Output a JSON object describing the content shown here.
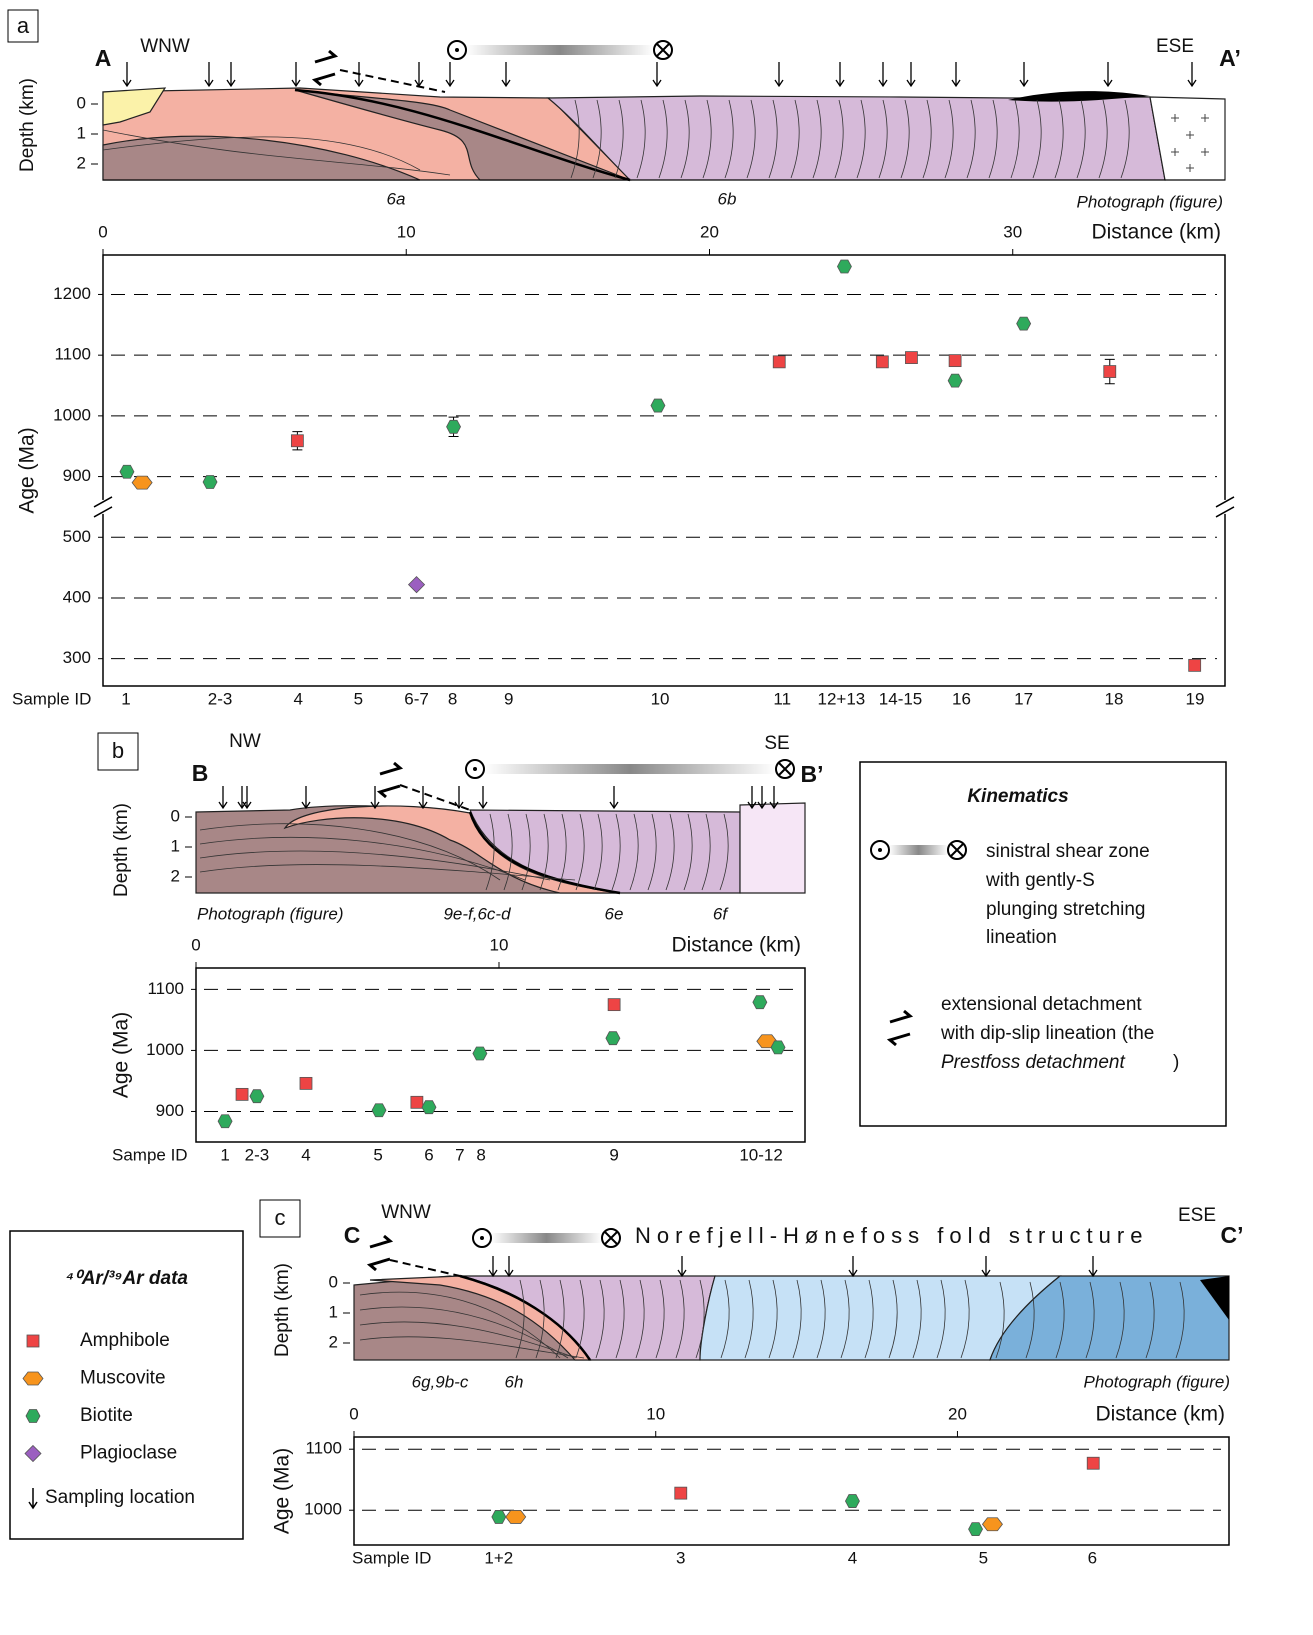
{
  "figure": {
    "panels": [
      {
        "label": "a",
        "section": {
          "start": "A",
          "end": "A’",
          "left_direction": "WNW",
          "right_direction": "ESE",
          "depth_label": "Depth (km)",
          "depth_ticks": [
            0,
            1,
            2
          ],
          "refs": [
            "6a",
            "6b"
          ],
          "photo_note": "Photograph (figure)"
        }
      },
      {
        "label": "b",
        "section": {
          "start": "B",
          "end": "B’",
          "left_direction": "NW",
          "right_direction": "SE",
          "depth_label": "Depth (km)",
          "depth_ticks": [
            0,
            1,
            2
          ],
          "refs": [
            "9e-f,6c-d",
            "6e",
            "6f"
          ],
          "photo_note": "Photograph (figure)"
        }
      },
      {
        "label": "c",
        "section": {
          "start": "C",
          "end": "C’",
          "left_direction": "WNW",
          "right_direction": "ESE",
          "structure": "Norefjell-Hønefoss fold structure",
          "depth_label": "Depth (km)",
          "depth_ticks": [
            0,
            1,
            2
          ],
          "refs": [
            "6g,9b-c",
            "6h"
          ],
          "photo_note": "Photograph (figure)"
        }
      }
    ],
    "kinematics": {
      "title": "Kinematics",
      "shear_zone": [
        "sinistral shear zone",
        "with gently-S",
        "plunging stretching",
        "lineation"
      ],
      "detachment": [
        "extensional detachment",
        "with dip-slip lineation (the",
        "Prestfoss detachment",
        ")"
      ]
    },
    "legend": {
      "title": "⁴⁰Ar/³⁹Ar data",
      "sampling": "Sampling location"
    }
  },
  "chart_data": [
    {
      "type": "scatter",
      "x_label": "Distance (km)",
      "y_label": "Age (Ma)",
      "xlim": [
        0,
        37
      ],
      "xticks": [
        0,
        10,
        20,
        30
      ],
      "ylim": [
        255,
        1265
      ],
      "y_break": [
        550,
        850
      ],
      "yticks": [
        300,
        400,
        500,
        900,
        1000,
        1100,
        1200
      ],
      "grid": true,
      "series": [
        {
          "name": "Amphibole",
          "color": "#ee4444",
          "marker": "square",
          "x": [
            6.41,
            22.3,
            25.7,
            26.66,
            28.1,
            33.2,
            36.0
          ],
          "values": [
            959,
            1089,
            1089,
            1096,
            1091,
            1073,
            289
          ],
          "errors": [
            15,
            null,
            null,
            null,
            null,
            20,
            null
          ]
        },
        {
          "name": "Muscovite",
          "color": "#f7941d",
          "marker": "wide-hexagon",
          "x": [
            1.29
          ],
          "values": [
            890
          ],
          "errors": [
            null
          ]
        },
        {
          "name": "Biotite",
          "color": "#2eaa5c",
          "marker": "hexagon",
          "x": [
            0.79,
            3.53,
            11.56,
            18.3,
            24.45,
            28.1,
            30.36
          ],
          "values": [
            908,
            891,
            982,
            1017,
            1246,
            1058,
            1152
          ],
          "errors": [
            null,
            null,
            16,
            null,
            null,
            null,
            null
          ]
        },
        {
          "name": "Plagioclase",
          "color": "#9b5fc0",
          "marker": "diamond",
          "x": [
            10.34
          ],
          "values": [
            422
          ],
          "errors": [
            null
          ]
        }
      ],
      "sample_ids": {
        "label": "Sample ID",
        "labels": [
          "1",
          "2-3",
          "4",
          "5",
          "6-7",
          "8",
          "9",
          "10",
          "11",
          "12+13",
          "14-15",
          "16",
          "17",
          "18",
          "19"
        ],
        "x": [
          0.76,
          3.86,
          6.44,
          8.42,
          10.34,
          11.53,
          13.38,
          18.37,
          22.4,
          24.35,
          26.3,
          28.31,
          30.36,
          33.34,
          36.01
        ]
      }
    },
    {
      "type": "scatter",
      "x_label": "Distance (km)",
      "y_label": "Age (Ma)",
      "xlim": [
        0,
        20.1
      ],
      "xticks": [
        0,
        10
      ],
      "ylim": [
        850,
        1135
      ],
      "yticks": [
        900,
        1000,
        1100
      ],
      "grid": true,
      "series": [
        {
          "name": "Amphibole",
          "color": "#ee4444",
          "marker": "square",
          "x": [
            1.52,
            3.63,
            7.29,
            13.8
          ],
          "values": [
            928,
            946,
            915,
            1075
          ]
        },
        {
          "name": "Muscovite",
          "color": "#f7941d",
          "marker": "wide-hexagon",
          "x": [
            18.84
          ],
          "values": [
            1015
          ]
        },
        {
          "name": "Biotite",
          "color": "#2eaa5c",
          "marker": "hexagon",
          "x": [
            0.96,
            2.01,
            6.04,
            7.69,
            9.37,
            13.76,
            18.61,
            19.21
          ],
          "values": [
            884,
            925,
            902,
            907,
            995,
            1020,
            1079,
            1005
          ]
        }
      ],
      "sample_ids": {
        "label": "Sampe ID",
        "labels": [
          "1",
          "2-3",
          "4",
          "5",
          "6",
          "7",
          "8",
          "9",
          "10-12"
        ],
        "x": [
          0.96,
          2.01,
          3.63,
          6.01,
          7.69,
          8.71,
          9.41,
          13.8,
          18.65
        ]
      }
    },
    {
      "type": "scatter",
      "x_label": "Distance (km)",
      "y_label": "Age (Ma)",
      "xlim": [
        0,
        29
      ],
      "xticks": [
        0,
        10,
        20
      ],
      "ylim": [
        943,
        1120
      ],
      "yticks": [
        1000,
        1100
      ],
      "grid": true,
      "series": [
        {
          "name": "Amphibole",
          "color": "#ee4444",
          "marker": "square",
          "x": [
            10.83,
            24.5
          ],
          "values": [
            1028,
            1077
          ]
        },
        {
          "name": "Muscovite",
          "color": "#f7941d",
          "marker": "wide-hexagon",
          "x": [
            5.36,
            21.16
          ],
          "values": [
            989,
            977
          ]
        },
        {
          "name": "Biotite",
          "color": "#2eaa5c",
          "marker": "hexagon",
          "x": [
            4.8,
            16.52,
            20.6
          ],
          "values": [
            989,
            1015,
            969
          ]
        }
      ],
      "sample_ids": {
        "label": "Sample ID",
        "labels": [
          "1+2",
          "3",
          "4",
          "5",
          "6"
        ],
        "x": [
          4.8,
          10.83,
          16.52,
          20.86,
          24.47
        ]
      }
    }
  ]
}
